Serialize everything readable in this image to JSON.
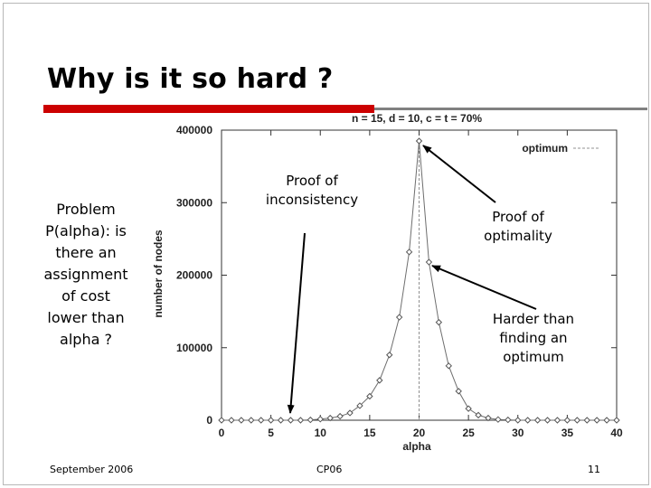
{
  "slide": {
    "title": "Why is it so hard ?",
    "side_text": "Problem\nP(alpha): is\nthere an\nassignment\nof cost\nlower than\nalpha ?",
    "annotations": {
      "inconsistency": "Proof of\ninconsistency",
      "optimality": "Proof of\noptimality",
      "harder": "Harder than\nfinding an\noptimum"
    },
    "footer": {
      "date": "September 2006",
      "event": "CP06",
      "page": "11"
    }
  },
  "chart_data": {
    "type": "line",
    "title": "n = 15, d = 10, c = t = 70%",
    "xlabel": "alpha",
    "ylabel": "number of nodes",
    "xlim": [
      0,
      40
    ],
    "ylim": [
      0,
      400000
    ],
    "x_ticks": [
      "0",
      "5",
      "10",
      "15",
      "20",
      "25",
      "30",
      "35",
      "40"
    ],
    "y_ticks": [
      "0",
      "100000",
      "200000",
      "300000",
      "400000"
    ],
    "grid": false,
    "legend_position": "top-right",
    "series": [
      {
        "name": "",
        "marker": "diamond",
        "x": [
          0,
          1,
          2,
          3,
          4,
          5,
          6,
          7,
          8,
          9,
          10,
          11,
          12,
          13,
          14,
          15,
          16,
          17,
          18,
          19,
          20,
          21,
          22,
          23,
          24,
          25,
          26,
          27,
          28,
          29,
          30,
          31,
          32,
          33,
          34,
          35,
          36,
          37,
          38,
          39,
          40
        ],
        "y": [
          0,
          0,
          0,
          0,
          0,
          0,
          0,
          0,
          0,
          500,
          1500,
          3000,
          5500,
          10000,
          20000,
          33000,
          55000,
          90000,
          142000,
          232000,
          385000,
          218000,
          135000,
          75000,
          40000,
          16000,
          7000,
          3000,
          1000,
          500,
          0,
          0,
          0,
          0,
          0,
          0,
          0,
          0,
          0,
          0,
          0
        ]
      },
      {
        "name": "optimum",
        "x": [
          20,
          20
        ],
        "y": [
          0,
          385000
        ]
      }
    ],
    "colors": {
      "curve": "#6e6e6e",
      "optimum": "#909090",
      "axis": "#333333",
      "arrow": "#000000"
    }
  }
}
